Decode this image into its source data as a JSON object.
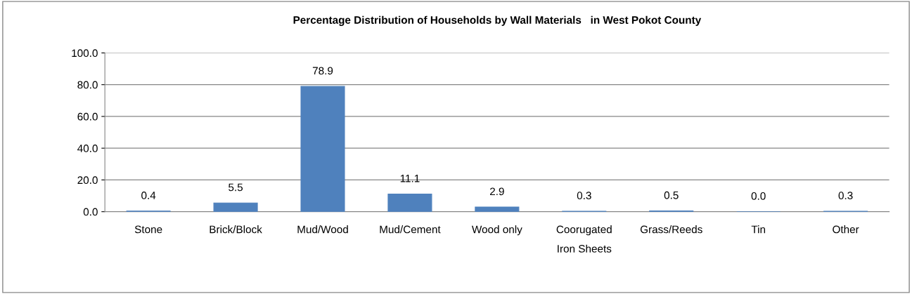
{
  "chart_data": {
    "type": "bar",
    "title": "Percentage Distribution of Households by Wall Materials   in West Pokot County",
    "categories": [
      "Stone",
      "Brick/Block",
      "Mud/Wood",
      "Mud/Cement",
      "Wood only",
      "Coorugated Iron Sheets",
      "Grass/Reeds",
      "Tin",
      "Other"
    ],
    "values": [
      0.4,
      5.5,
      78.9,
      11.1,
      2.9,
      0.3,
      0.5,
      0.0,
      0.3
    ],
    "color": "#4f81bd",
    "ylim": [
      0,
      100
    ],
    "yticks": [
      {
        "value": 0,
        "label": "0.0"
      },
      {
        "value": 20,
        "label": "20.0"
      },
      {
        "value": 40,
        "label": "40.0"
      },
      {
        "value": 60,
        "label": "60.0"
      },
      {
        "value": 80,
        "label": "80.0"
      },
      {
        "value": 100,
        "label": "100.0"
      }
    ],
    "value_labels": [
      "0.4",
      "5.5",
      "78.9",
      "11.1",
      "2.9",
      "0.3",
      "0.5",
      "0.0",
      "0.3"
    ],
    "grid": "y"
  }
}
